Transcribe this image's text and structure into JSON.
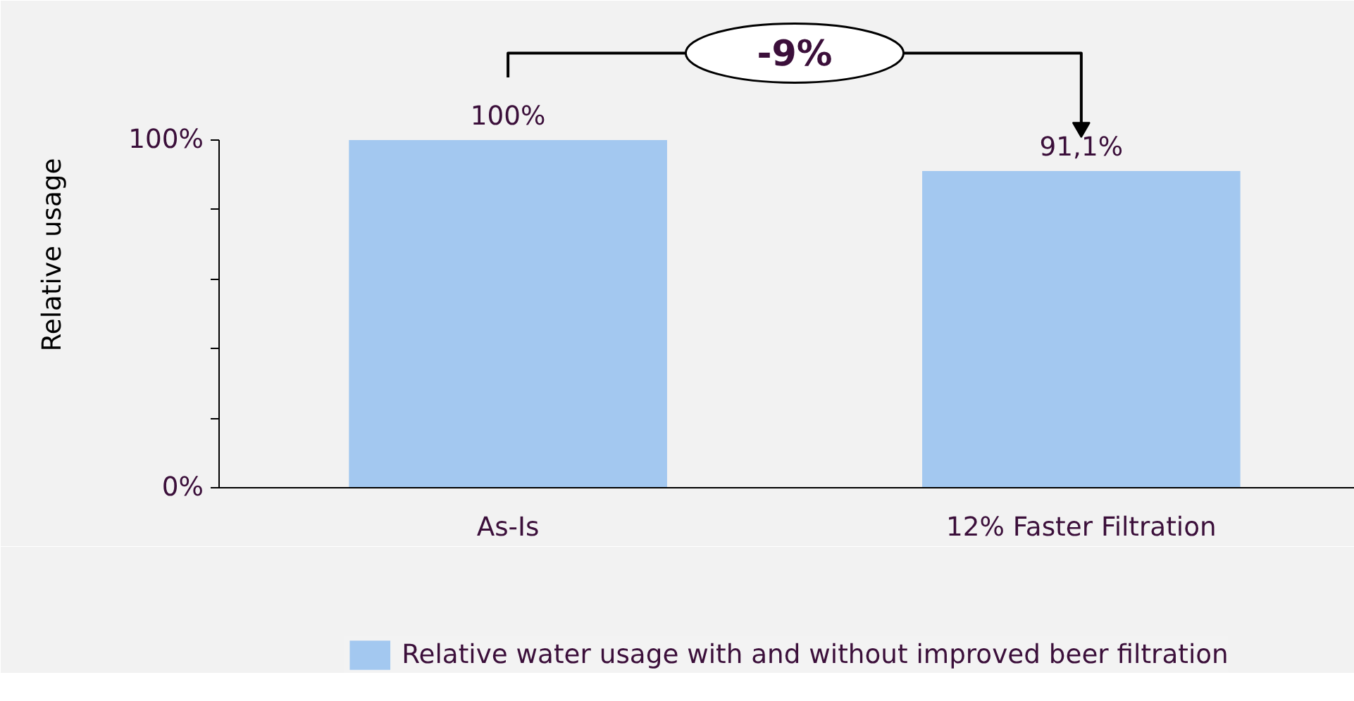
{
  "chart_data": {
    "type": "bar",
    "ylabel": "Relative usage",
    "categories": [
      "As-Is",
      "12% Faster Filtration"
    ],
    "series": [
      {
        "name": "Relative water usage with and without improved beer filtration",
        "color": "#a3c8f0",
        "values": [
          100,
          91.1
        ],
        "value_labels": [
          "100%",
          "91,1%"
        ]
      }
    ],
    "ylim": [
      0,
      100
    ],
    "yticks": [
      {
        "value": 0,
        "label": "0%"
      },
      {
        "value": 20,
        "label": null
      },
      {
        "value": 40,
        "label": null
      },
      {
        "value": 60,
        "label": null
      },
      {
        "value": 80,
        "label": null
      },
      {
        "value": 100,
        "label": "100%"
      }
    ],
    "annotations": [
      "-9%"
    ],
    "grid": false,
    "legend": "bottom"
  }
}
